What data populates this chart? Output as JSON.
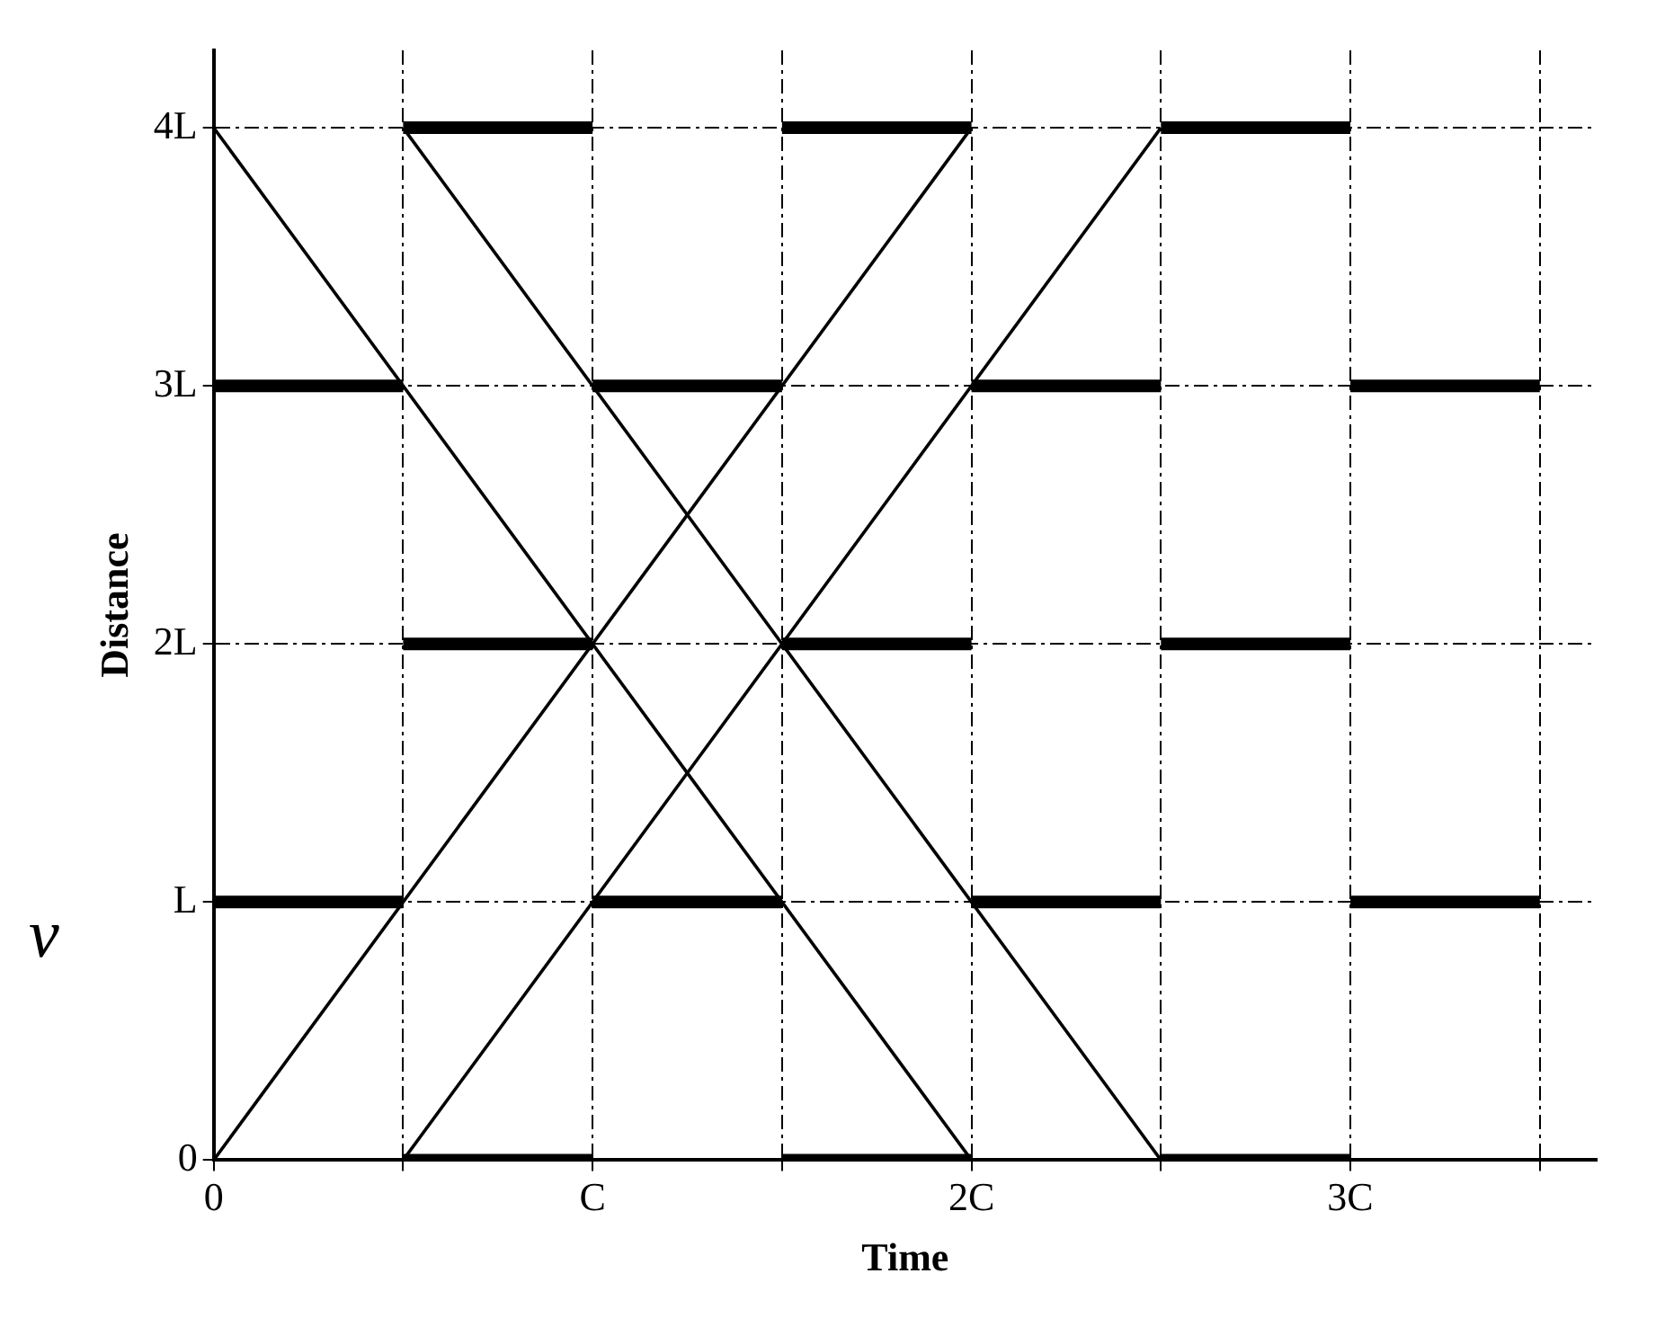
{
  "chart_data": {
    "type": "line",
    "xlabel": "Time",
    "ylabel": "Distance",
    "xlim": [
      0,
      3.65
    ],
    "ylim": [
      0,
      4.3
    ],
    "xticks": [
      0,
      {
        "value": 0.5,
        "label": null
      },
      {
        "value": 1,
        "label": "C"
      },
      {
        "value": 1.5,
        "label": null
      },
      {
        "value": 2,
        "label": "2C"
      },
      {
        "value": 2.5,
        "label": null
      },
      {
        "value": 3,
        "label": "3C"
      },
      {
        "value": 3.5,
        "label": null
      }
    ],
    "yticks": [
      0,
      {
        "value": 1,
        "label": "L"
      },
      {
        "value": 2,
        "label": "2L"
      },
      {
        "value": 3,
        "label": "3L"
      },
      {
        "value": 4,
        "label": "4L"
      }
    ],
    "grid": true,
    "legend": false,
    "annotations": [
      "v"
    ],
    "series": [
      {
        "type": "line",
        "color": "#000000",
        "x": [
          0,
          2
        ],
        "values": [
          0,
          4
        ]
      },
      {
        "type": "line",
        "color": "#000000",
        "x": [
          0.5,
          2.5
        ],
        "values": [
          0,
          4
        ]
      },
      {
        "type": "line",
        "color": "#000000",
        "x": [
          0,
          2
        ],
        "values": [
          4,
          0
        ]
      },
      {
        "type": "line",
        "color": "#000000",
        "x": [
          0.5,
          2.5
        ],
        "values": [
          4,
          0
        ]
      },
      {
        "type": "step",
        "color": "#000000",
        "x": [
          0.5,
          1,
          1.25,
          1.5,
          2,
          2.25,
          2.5,
          3
        ],
        "values": [
          4,
          4,
          null,
          4,
          4,
          null,
          4,
          4
        ]
      },
      {
        "type": "step",
        "color": "#000000",
        "x": [
          0,
          0.5,
          0.75,
          1,
          1.5,
          1.75,
          2,
          2.5,
          2.75,
          3,
          3.5
        ],
        "values": [
          3,
          3,
          null,
          3,
          3,
          null,
          3,
          3,
          null,
          3,
          3
        ]
      },
      {
        "type": "step",
        "color": "#000000",
        "x": [
          0.5,
          1,
          1.25,
          1.5,
          2,
          2.25,
          2.5,
          3
        ],
        "values": [
          2,
          2,
          null,
          2,
          2,
          null,
          2,
          2
        ]
      },
      {
        "type": "step",
        "color": "#000000",
        "x": [
          0,
          0.5,
          0.75,
          1,
          1.5,
          1.75,
          2,
          2.5,
          2.75,
          3,
          3.5
        ],
        "values": [
          1,
          1,
          null,
          1,
          1,
          null,
          1,
          1,
          null,
          1,
          1
        ]
      },
      {
        "type": "step",
        "color": "#000000",
        "x": [
          0.5,
          1,
          1.25,
          1.5,
          2,
          2.25,
          2.5,
          3
        ],
        "values": [
          0,
          0,
          null,
          0,
          0,
          null,
          0,
          0
        ]
      }
    ]
  }
}
